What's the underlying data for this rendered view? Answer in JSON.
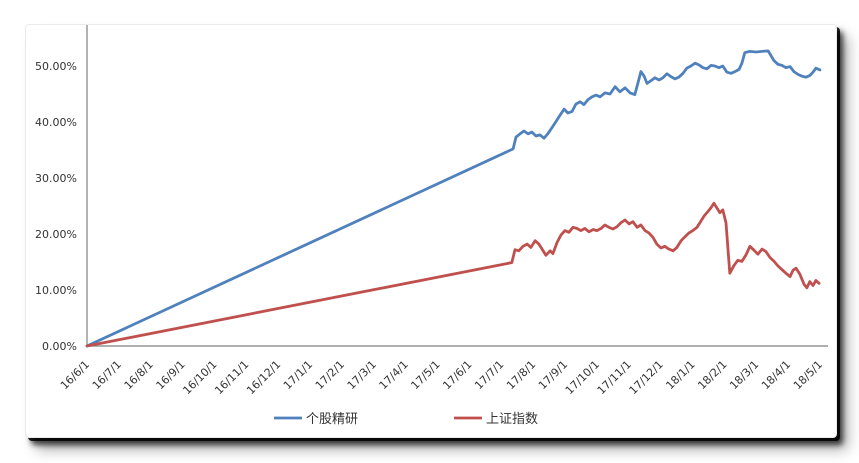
{
  "chart_data": {
    "type": "line",
    "title": "",
    "xlabel": "",
    "ylabel": "",
    "grid": false,
    "legend_position": "bottom",
    "axis_color": "#808080",
    "label_color": "#333333",
    "background": "#ffffff",
    "ylim": [
      0,
      57
    ],
    "yticks": [
      0,
      10,
      20,
      30,
      40,
      50
    ],
    "ytick_labels": [
      "0.00%",
      "10.00%",
      "20.00%",
      "30.00%",
      "40.00%",
      "50.00%"
    ],
    "categories": [
      "16/6/1",
      "16/7/1",
      "16/8/1",
      "16/9/1",
      "16/10/1",
      "16/11/1",
      "16/12/1",
      "17/1/1",
      "17/2/1",
      "17/3/1",
      "17/4/1",
      "17/5/1",
      "17/6/1",
      "17/7/1",
      "17/8/1",
      "17/9/1",
      "17/10/1",
      "17/11/1",
      "17/12/1",
      "18/1/1",
      "18/2/1",
      "18/3/1",
      "18/4/1",
      "18/5/1"
    ],
    "x_format": "month_index_from_first_category",
    "series": [
      {
        "name": "个股精研",
        "color": "#4F81BD",
        "points": [
          [
            0,
            0
          ],
          [
            13.37,
            35.2
          ],
          [
            13.46,
            37.3
          ],
          [
            13.59,
            37.9
          ],
          [
            13.71,
            38.4
          ],
          [
            13.84,
            37.9
          ],
          [
            13.96,
            38.2
          ],
          [
            14.09,
            37.5
          ],
          [
            14.21,
            37.7
          ],
          [
            14.34,
            37.1
          ],
          [
            14.46,
            37.9
          ],
          [
            14.59,
            39.0
          ],
          [
            14.72,
            40.1
          ],
          [
            14.84,
            41.2
          ],
          [
            14.97,
            42.3
          ],
          [
            15.09,
            41.6
          ],
          [
            15.22,
            41.9
          ],
          [
            15.34,
            43.2
          ],
          [
            15.47,
            43.6
          ],
          [
            15.59,
            43.1
          ],
          [
            15.72,
            44.0
          ],
          [
            15.85,
            44.5
          ],
          [
            15.97,
            44.8
          ],
          [
            16.1,
            44.5
          ],
          [
            16.25,
            45.2
          ],
          [
            16.41,
            45.0
          ],
          [
            16.57,
            46.3
          ],
          [
            16.72,
            45.4
          ],
          [
            16.88,
            46.1
          ],
          [
            17.04,
            45.2
          ],
          [
            17.19,
            44.9
          ],
          [
            17.29,
            47.0
          ],
          [
            17.38,
            49.0
          ],
          [
            17.48,
            48.2
          ],
          [
            17.57,
            46.9
          ],
          [
            17.7,
            47.4
          ],
          [
            17.82,
            47.9
          ],
          [
            17.95,
            47.5
          ],
          [
            18.07,
            47.9
          ],
          [
            18.2,
            48.6
          ],
          [
            18.32,
            48.1
          ],
          [
            18.45,
            47.7
          ],
          [
            18.57,
            48.0
          ],
          [
            18.7,
            48.7
          ],
          [
            18.82,
            49.6
          ],
          [
            18.95,
            50.0
          ],
          [
            19.08,
            50.5
          ],
          [
            19.2,
            50.2
          ],
          [
            19.33,
            49.7
          ],
          [
            19.45,
            49.5
          ],
          [
            19.58,
            50.1
          ],
          [
            19.7,
            50.0
          ],
          [
            19.83,
            49.7
          ],
          [
            19.95,
            50.0
          ],
          [
            20.08,
            48.9
          ],
          [
            20.21,
            48.7
          ],
          [
            20.33,
            49.0
          ],
          [
            20.46,
            49.4
          ],
          [
            20.55,
            50.5
          ],
          [
            20.64,
            52.4
          ],
          [
            20.8,
            52.6
          ],
          [
            20.99,
            52.5
          ],
          [
            21.18,
            52.6
          ],
          [
            21.37,
            52.7
          ],
          [
            21.46,
            51.9
          ],
          [
            21.55,
            51.0
          ],
          [
            21.68,
            50.3
          ],
          [
            21.81,
            50.1
          ],
          [
            21.93,
            49.7
          ],
          [
            22.06,
            49.9
          ],
          [
            22.18,
            49.0
          ],
          [
            22.31,
            48.5
          ],
          [
            22.43,
            48.2
          ],
          [
            22.56,
            48.0
          ],
          [
            22.68,
            48.3
          ],
          [
            22.78,
            48.9
          ],
          [
            22.87,
            49.6
          ],
          [
            23,
            49.3
          ]
        ]
      },
      {
        "name": "上证指数",
        "color": "#C0504D",
        "points": [
          [
            0,
            0
          ],
          [
            13.33,
            14.9
          ],
          [
            13.43,
            17.2
          ],
          [
            13.55,
            17.0
          ],
          [
            13.68,
            17.8
          ],
          [
            13.81,
            18.2
          ],
          [
            13.93,
            17.6
          ],
          [
            14.06,
            18.8
          ],
          [
            14.18,
            18.2
          ],
          [
            14.31,
            17.0
          ],
          [
            14.4,
            16.2
          ],
          [
            14.53,
            17.0
          ],
          [
            14.62,
            16.5
          ],
          [
            14.75,
            18.5
          ],
          [
            14.87,
            19.8
          ],
          [
            15.0,
            20.6
          ],
          [
            15.12,
            20.3
          ],
          [
            15.25,
            21.2
          ],
          [
            15.37,
            21.0
          ],
          [
            15.5,
            20.6
          ],
          [
            15.62,
            21.0
          ],
          [
            15.75,
            20.4
          ],
          [
            15.88,
            20.8
          ],
          [
            16.0,
            20.6
          ],
          [
            16.13,
            21.0
          ],
          [
            16.25,
            21.6
          ],
          [
            16.38,
            21.2
          ],
          [
            16.5,
            20.9
          ],
          [
            16.63,
            21.3
          ],
          [
            16.75,
            22.0
          ],
          [
            16.88,
            22.5
          ],
          [
            17.01,
            21.8
          ],
          [
            17.13,
            22.2
          ],
          [
            17.26,
            21.2
          ],
          [
            17.38,
            21.6
          ],
          [
            17.51,
            20.6
          ],
          [
            17.63,
            20.2
          ],
          [
            17.76,
            19.4
          ],
          [
            17.88,
            18.2
          ],
          [
            18.01,
            17.5
          ],
          [
            18.13,
            17.8
          ],
          [
            18.26,
            17.3
          ],
          [
            18.39,
            17.0
          ],
          [
            18.51,
            17.6
          ],
          [
            18.64,
            18.8
          ],
          [
            18.76,
            19.5
          ],
          [
            18.89,
            20.2
          ],
          [
            19.01,
            20.6
          ],
          [
            19.14,
            21.2
          ],
          [
            19.23,
            22.0
          ],
          [
            19.36,
            23.2
          ],
          [
            19.48,
            24.0
          ],
          [
            19.58,
            24.7
          ],
          [
            19.67,
            25.5
          ],
          [
            19.77,
            24.6
          ],
          [
            19.86,
            23.8
          ],
          [
            19.95,
            24.3
          ],
          [
            20.05,
            22.0
          ],
          [
            20.11,
            17.5
          ],
          [
            20.17,
            13.0
          ],
          [
            20.3,
            14.4
          ],
          [
            20.42,
            15.3
          ],
          [
            20.55,
            15.1
          ],
          [
            20.68,
            16.3
          ],
          [
            20.8,
            17.8
          ],
          [
            20.93,
            17.1
          ],
          [
            21.05,
            16.4
          ],
          [
            21.18,
            17.3
          ],
          [
            21.3,
            16.9
          ],
          [
            21.43,
            15.8
          ],
          [
            21.56,
            15.1
          ],
          [
            21.68,
            14.3
          ],
          [
            21.81,
            13.6
          ],
          [
            21.93,
            13.0
          ],
          [
            22.06,
            12.4
          ],
          [
            22.15,
            13.5
          ],
          [
            22.25,
            13.9
          ],
          [
            22.37,
            12.8
          ],
          [
            22.5,
            11.0
          ],
          [
            22.59,
            10.4
          ],
          [
            22.68,
            11.5
          ],
          [
            22.78,
            10.8
          ],
          [
            22.87,
            11.7
          ],
          [
            22.97,
            11.2
          ]
        ]
      }
    ]
  }
}
